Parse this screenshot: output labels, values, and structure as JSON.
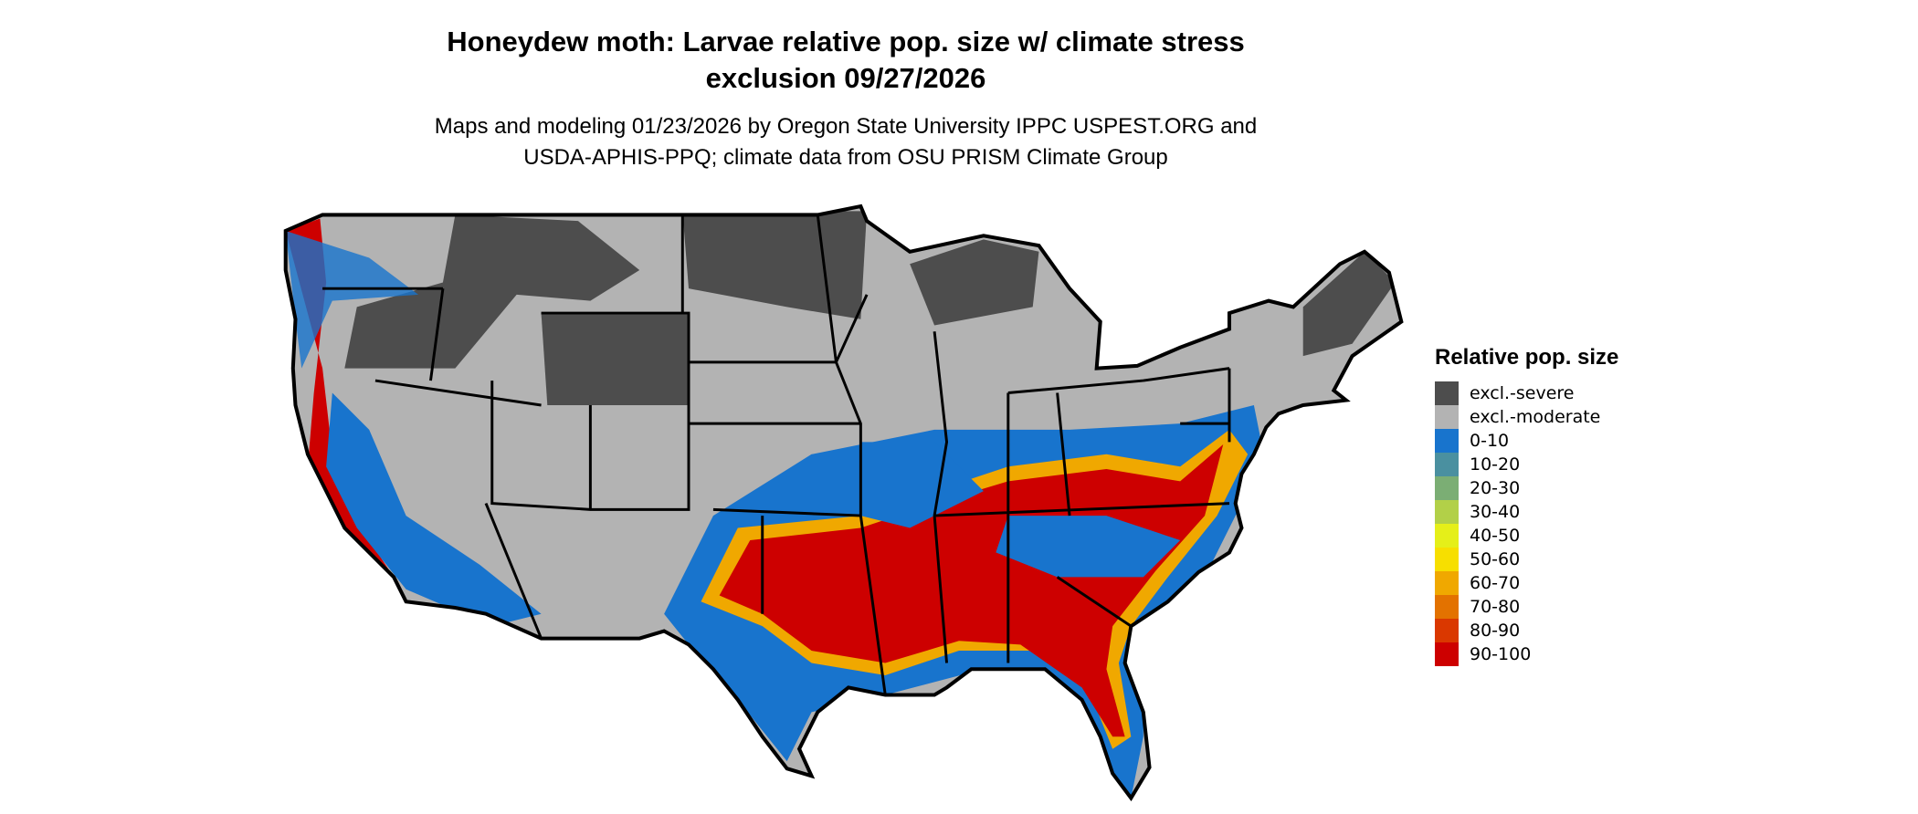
{
  "title_line1": "Honeydew moth: Larvae relative pop. size w/ climate stress",
  "title_line2": "exclusion 09/27/2026",
  "subtitle_line1": "Maps and modeling 01/23/2026 by Oregon State University IPPC USPEST.ORG and",
  "subtitle_line2": "USDA-APHIS-PPQ; climate data from OSU PRISM Climate Group",
  "legend": {
    "title": "Relative pop. size",
    "items": [
      {
        "label": "excl.-severe",
        "color": "#4d4d4d"
      },
      {
        "label": "excl.-moderate",
        "color": "#b3b3b3"
      },
      {
        "label": "0-10",
        "color": "#1874cd"
      },
      {
        "label": "10-20",
        "color": "#4a90a0"
      },
      {
        "label": "20-30",
        "color": "#7bae74"
      },
      {
        "label": "30-40",
        "color": "#b2d048"
      },
      {
        "label": "40-50",
        "color": "#e5ef19"
      },
      {
        "label": "50-60",
        "color": "#f7df00"
      },
      {
        "label": "60-70",
        "color": "#f0a800"
      },
      {
        "label": "70-80",
        "color": "#e37200"
      },
      {
        "label": "80-90",
        "color": "#da3800"
      },
      {
        "label": "90-100",
        "color": "#cd0000"
      }
    ]
  },
  "chart_data": {
    "type": "map",
    "region": "Contiguous United States",
    "variable": "Relative pop. size",
    "categories": [
      "excl.-severe",
      "excl.-moderate",
      "0-10",
      "10-20",
      "20-30",
      "30-40",
      "40-50",
      "50-60",
      "60-70",
      "70-80",
      "80-90",
      "90-100"
    ]
  }
}
